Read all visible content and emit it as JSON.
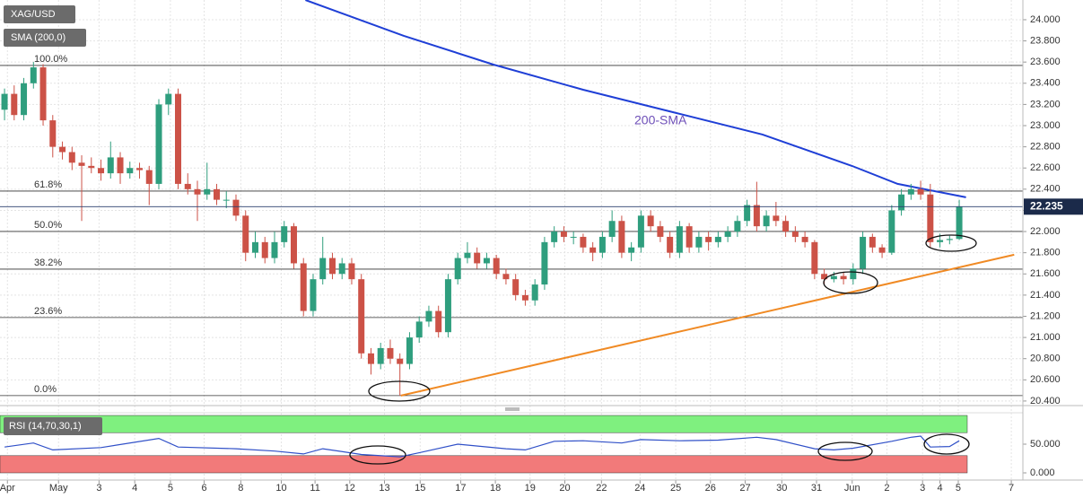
{
  "chart_data": [
    {
      "type": "candlestick",
      "symbol": "XAG/USD",
      "indicator": "SMA (200,0)",
      "annotation": "200-SMA",
      "up_color": "#2f9e7e",
      "down_color": "#cc5247",
      "ylim": [
        20.357,
        24.186
      ],
      "yticks": [
        {
          "value": 20.4,
          "label": "20.400"
        },
        {
          "value": 20.6,
          "label": "20.600"
        },
        {
          "value": 20.8,
          "label": "20.800"
        },
        {
          "value": 21.0,
          "label": "21.000"
        },
        {
          "value": 21.2,
          "label": "21.200"
        },
        {
          "value": 21.4,
          "label": "21.400"
        },
        {
          "value": 21.6,
          "label": "21.600"
        },
        {
          "value": 21.8,
          "label": "21.800"
        },
        {
          "value": 22.0,
          "label": "22.000"
        },
        {
          "value": 22.2,
          "label": "22.200"
        },
        {
          "value": 22.4,
          "label": "22.400"
        },
        {
          "value": 22.6,
          "label": "22.600"
        },
        {
          "value": 22.8,
          "label": "22.800"
        },
        {
          "value": 23.0,
          "label": "23.000"
        },
        {
          "value": 23.2,
          "label": "23.200"
        },
        {
          "value": 23.4,
          "label": "23.400"
        },
        {
          "value": 23.6,
          "label": "23.600"
        },
        {
          "value": 23.8,
          "label": "23.800"
        },
        {
          "value": 24.0,
          "label": "24.000"
        }
      ],
      "xlim": [
        -0.47,
        105.6
      ],
      "xticks": [
        {
          "value": 0.3,
          "label": "Apr"
        },
        {
          "value": 5.6,
          "label": "May"
        },
        {
          "value": 9.8,
          "label": "3"
        },
        {
          "value": 13.5,
          "label": "4"
        },
        {
          "value": 17.2,
          "label": "5"
        },
        {
          "value": 20.7,
          "label": "6"
        },
        {
          "value": 24.5,
          "label": "8"
        },
        {
          "value": 28.7,
          "label": "10"
        },
        {
          "value": 32.2,
          "label": "11"
        },
        {
          "value": 35.8,
          "label": "12"
        },
        {
          "value": 39.4,
          "label": "13"
        },
        {
          "value": 43.1,
          "label": "15"
        },
        {
          "value": 47.3,
          "label": "17"
        },
        {
          "value": 50.9,
          "label": "18"
        },
        {
          "value": 54.5,
          "label": "19"
        },
        {
          "value": 58.1,
          "label": "20"
        },
        {
          "value": 61.9,
          "label": "22"
        },
        {
          "value": 65.9,
          "label": "24"
        },
        {
          "value": 69.6,
          "label": "25"
        },
        {
          "value": 73.2,
          "label": "26"
        },
        {
          "value": 76.8,
          "label": "27"
        },
        {
          "value": 80.6,
          "label": "30"
        },
        {
          "value": 84.2,
          "label": "31"
        },
        {
          "value": 87.9,
          "label": "Jun"
        },
        {
          "value": 91.5,
          "label": "2"
        },
        {
          "value": 95.2,
          "label": "3"
        },
        {
          "value": 97.0,
          "label": "4"
        },
        {
          "value": 98.9,
          "label": "5"
        },
        {
          "value": 104.4,
          "label": "7"
        }
      ],
      "last_price": 22.235,
      "fib": [
        {
          "label": "100.0%",
          "value": 23.568
        },
        {
          "label": "61.8%",
          "value": 22.382
        },
        {
          "label": "50.0%",
          "value": 22.001
        },
        {
          "label": "38.2%",
          "value": 21.645
        },
        {
          "label": "23.6%",
          "value": 21.188
        },
        {
          "label": "0.0%",
          "value": 20.451
        }
      ],
      "sma": {
        "color": "#1f3fd6",
        "x": [
          31.2,
          41.4,
          50.7,
          60,
          69.3,
          78.6,
          87.9,
          92.6,
          99.7
        ],
        "values": [
          24.186,
          23.848,
          23.576,
          23.339,
          23.127,
          22.916,
          22.619,
          22.45,
          22.323
        ]
      },
      "trendline": {
        "color": "#f08a24",
        "x": [
          41.1,
          104.7
        ],
        "values": [
          20.451,
          21.781
        ]
      },
      "ohlc": [
        [
          23.15,
          23.35,
          23.05,
          23.3
        ],
        [
          23.3,
          23.38,
          23.05,
          23.1
        ],
        [
          23.1,
          23.45,
          23.05,
          23.4
        ],
        [
          23.4,
          23.6,
          23.35,
          23.55
        ],
        [
          23.55,
          23.58,
          23.0,
          23.05
        ],
        [
          23.05,
          23.1,
          22.7,
          22.8
        ],
        [
          22.8,
          22.85,
          22.68,
          22.75
        ],
        [
          22.75,
          22.8,
          22.58,
          22.65
        ],
        [
          22.65,
          22.72,
          22.1,
          22.62
        ],
        [
          22.62,
          22.7,
          22.55,
          22.6
        ],
        [
          22.6,
          22.68,
          22.48,
          22.55
        ],
        [
          22.55,
          22.85,
          22.5,
          22.7
        ],
        [
          22.7,
          22.75,
          22.45,
          22.55
        ],
        [
          22.55,
          22.66,
          22.5,
          22.6
        ],
        [
          22.6,
          22.65,
          22.5,
          22.58
        ],
        [
          22.58,
          22.62,
          22.25,
          22.45
        ],
        [
          22.45,
          23.25,
          22.4,
          23.2
        ],
        [
          23.2,
          23.35,
          23.1,
          23.3
        ],
        [
          23.3,
          23.35,
          22.4,
          22.45
        ],
        [
          22.45,
          22.55,
          22.35,
          22.4
        ],
        [
          22.4,
          22.48,
          22.1,
          22.35
        ],
        [
          22.35,
          22.65,
          22.3,
          22.4
        ],
        [
          22.4,
          22.45,
          22.25,
          22.3
        ],
        [
          22.3,
          22.38,
          22.22,
          22.3
        ],
        [
          22.3,
          22.35,
          22.1,
          22.15
        ],
        [
          22.15,
          22.2,
          21.72,
          21.8
        ],
        [
          21.8,
          22.0,
          21.75,
          21.9
        ],
        [
          21.9,
          21.95,
          21.7,
          21.75
        ],
        [
          21.75,
          22.0,
          21.7,
          21.9
        ],
        [
          21.9,
          22.1,
          21.85,
          22.05
        ],
        [
          22.05,
          22.08,
          21.65,
          21.7
        ],
        [
          21.7,
          21.75,
          21.2,
          21.25
        ],
        [
          21.25,
          21.6,
          21.2,
          21.55
        ],
        [
          21.55,
          21.95,
          21.5,
          21.75
        ],
        [
          21.75,
          21.8,
          21.55,
          21.6
        ],
        [
          21.6,
          21.75,
          21.55,
          21.7
        ],
        [
          21.7,
          21.75,
          21.5,
          21.55
        ],
        [
          21.55,
          21.6,
          20.8,
          20.85
        ],
        [
          20.85,
          20.9,
          20.65,
          20.75
        ],
        [
          20.75,
          20.95,
          20.7,
          20.9
        ],
        [
          20.9,
          20.98,
          20.75,
          20.8
        ],
        [
          20.8,
          20.85,
          20.45,
          20.75
        ],
        [
          20.75,
          21.05,
          20.7,
          21.0
        ],
        [
          21.0,
          21.2,
          20.95,
          21.15
        ],
        [
          21.15,
          21.3,
          21.1,
          21.25
        ],
        [
          21.25,
          21.3,
          21.0,
          21.05
        ],
        [
          21.05,
          21.6,
          21.0,
          21.55
        ],
        [
          21.55,
          21.8,
          21.5,
          21.75
        ],
        [
          21.75,
          21.9,
          21.7,
          21.8
        ],
        [
          21.8,
          21.85,
          21.65,
          21.7
        ],
        [
          21.7,
          21.8,
          21.65,
          21.75
        ],
        [
          21.75,
          21.78,
          21.55,
          21.6
        ],
        [
          21.6,
          21.65,
          21.5,
          21.55
        ],
        [
          21.55,
          21.6,
          21.35,
          21.4
        ],
        [
          21.4,
          21.45,
          21.3,
          21.35
        ],
        [
          21.35,
          21.55,
          21.3,
          21.5
        ],
        [
          21.5,
          21.95,
          21.45,
          21.9
        ],
        [
          21.9,
          22.05,
          21.85,
          22.0
        ],
        [
          22.0,
          22.05,
          21.9,
          21.95
        ],
        [
          21.95,
          22.0,
          21.88,
          21.95
        ],
        [
          21.95,
          21.98,
          21.8,
          21.85
        ],
        [
          21.85,
          21.9,
          21.72,
          21.8
        ],
        [
          21.8,
          22.0,
          21.75,
          21.95
        ],
        [
          21.95,
          22.2,
          21.9,
          22.1
        ],
        [
          22.1,
          22.15,
          21.75,
          21.8
        ],
        [
          21.8,
          21.9,
          21.72,
          21.85
        ],
        [
          21.85,
          22.2,
          21.8,
          22.15
        ],
        [
          22.15,
          22.2,
          22.0,
          22.05
        ],
        [
          22.05,
          22.1,
          21.9,
          21.95
        ],
        [
          21.95,
          22.0,
          21.75,
          21.8
        ],
        [
          21.8,
          22.1,
          21.75,
          22.05
        ],
        [
          22.05,
          22.08,
          21.8,
          21.85
        ],
        [
          21.85,
          22.0,
          21.8,
          21.95
        ],
        [
          21.95,
          22.0,
          21.82,
          21.9
        ],
        [
          21.9,
          22.0,
          21.85,
          21.95
        ],
        [
          21.95,
          22.05,
          21.9,
          22.0
        ],
        [
          22.0,
          22.15,
          21.95,
          22.1
        ],
        [
          22.1,
          22.3,
          22.05,
          22.25
        ],
        [
          22.25,
          22.47,
          22.0,
          22.05
        ],
        [
          22.05,
          22.2,
          22.0,
          22.15
        ],
        [
          22.15,
          22.28,
          22.05,
          22.1
        ],
        [
          22.1,
          22.15,
          21.95,
          22.0
        ],
        [
          22.0,
          22.05,
          21.9,
          21.95
        ],
        [
          21.95,
          22.0,
          21.85,
          21.9
        ],
        [
          21.9,
          21.92,
          21.55,
          21.6
        ],
        [
          21.6,
          21.65,
          21.5,
          21.55
        ],
        [
          21.55,
          21.62,
          21.52,
          21.58
        ],
        [
          21.58,
          21.62,
          21.5,
          21.55
        ],
        [
          21.55,
          21.7,
          21.5,
          21.65
        ],
        [
          21.65,
          22.0,
          21.6,
          21.95
        ],
        [
          21.95,
          21.98,
          21.8,
          21.85
        ],
        [
          21.85,
          21.88,
          21.75,
          21.8
        ],
        [
          21.8,
          22.25,
          21.78,
          22.2
        ],
        [
          22.2,
          22.4,
          22.15,
          22.35
        ],
        [
          22.35,
          22.45,
          22.3,
          22.4
        ],
        [
          22.4,
          22.48,
          22.3,
          22.35
        ],
        [
          22.35,
          22.45,
          21.85,
          21.9
        ],
        [
          21.9,
          21.98,
          21.85,
          21.92
        ],
        [
          21.92,
          21.96,
          21.88,
          21.93
        ],
        [
          21.93,
          22.3,
          21.92,
          22.235
        ]
      ]
    },
    {
      "type": "line",
      "legend": "RSI (14,70,30,1)",
      "color": "#3050c8",
      "ylim": [
        -12.5,
        104.7
      ],
      "yticks": [
        {
          "value": 50,
          "label": "50.000"
        },
        {
          "value": 0,
          "label": "0.000"
        }
      ],
      "overbought": [
        70,
        100
      ],
      "overbought_color": "#7ff07f",
      "oversold": [
        0,
        30
      ],
      "oversold_color": "#f27a7a",
      "x": [
        0,
        3,
        5,
        10,
        16,
        18,
        24,
        28,
        31,
        33,
        37,
        41,
        43,
        47,
        52,
        54,
        57,
        60,
        64,
        66,
        70,
        74,
        78,
        80,
        84,
        86,
        88,
        92,
        94,
        95,
        96,
        98,
        99
      ],
      "values": [
        45,
        52,
        40,
        44,
        60,
        45,
        42,
        38,
        33,
        42,
        32,
        28,
        35,
        50,
        42,
        40,
        55,
        56,
        52,
        58,
        56,
        57,
        62,
        58,
        42,
        40,
        43,
        55,
        62,
        64,
        45,
        46,
        56
      ]
    }
  ]
}
